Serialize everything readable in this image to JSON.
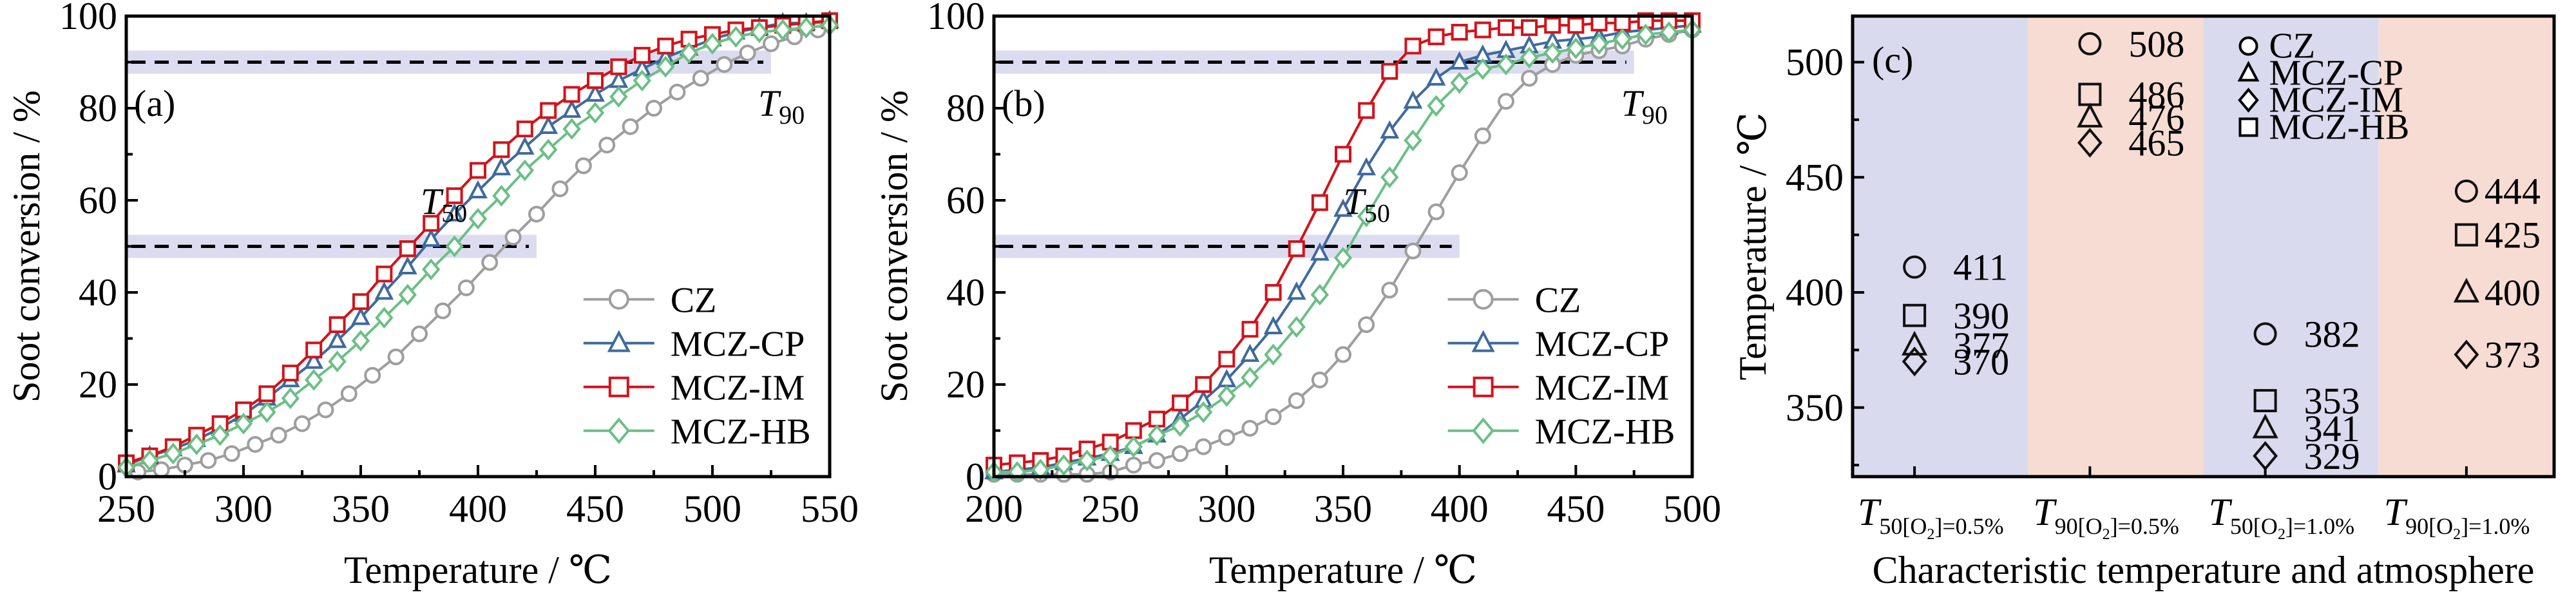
{
  "chart_data": [
    {
      "type": "line",
      "panel_label": "(a)",
      "xlabel": "Temperature / ℃",
      "ylabel": "Soot conversion / %",
      "xlim": [
        250,
        550
      ],
      "ylim": [
        0,
        100
      ],
      "xticks": [
        250,
        300,
        350,
        400,
        450,
        500,
        550
      ],
      "yticks": [
        0,
        20,
        40,
        60,
        80,
        100
      ],
      "legend_position": "bottom-right",
      "reference_lines": [
        {
          "y": 90,
          "label": "T",
          "sub": "90",
          "x_end": 525
        },
        {
          "y": 50,
          "label": "T",
          "sub": "50",
          "x_end": 425
        }
      ],
      "series": [
        {
          "name": "CZ",
          "marker": "circle",
          "color": "#9e9e9e",
          "x": [
            255,
            265,
            275,
            285,
            295,
            305,
            315,
            325,
            335,
            345,
            355,
            365,
            375,
            385,
            395,
            405,
            415,
            425,
            435,
            445,
            455,
            465,
            475,
            485,
            495,
            505,
            515,
            525,
            535,
            545
          ],
          "y": [
            1,
            1.5,
            2.5,
            3.5,
            5,
            7,
            9,
            11.5,
            14.5,
            18,
            22,
            26,
            31,
            36,
            41,
            46.5,
            52,
            57,
            62.5,
            67.5,
            72,
            76,
            80,
            83.5,
            86.5,
            89.5,
            92,
            94,
            95.5,
            97
          ]
        },
        {
          "name": "MCZ-CP",
          "marker": "triangle",
          "color": "#3f6a9e",
          "x": [
            250,
            260,
            270,
            280,
            290,
            300,
            310,
            320,
            330,
            340,
            350,
            360,
            370,
            380,
            390,
            400,
            410,
            420,
            430,
            440,
            450,
            460,
            470,
            480,
            490,
            500,
            510,
            520,
            530,
            540,
            550
          ],
          "y": [
            2.5,
            4.5,
            6,
            8,
            10.5,
            13.5,
            17,
            21,
            25,
            29.5,
            34.5,
            40,
            45.5,
            51.5,
            57,
            62,
            67,
            71.5,
            76,
            79.5,
            83,
            86,
            88.5,
            91,
            93,
            95,
            96.5,
            97.5,
            98.5,
            98.5,
            99
          ]
        },
        {
          "name": "MCZ-IM",
          "marker": "square",
          "color": "#d0141b",
          "x": [
            250,
            260,
            270,
            280,
            290,
            300,
            310,
            320,
            330,
            340,
            350,
            360,
            370,
            380,
            390,
            400,
            410,
            420,
            430,
            440,
            450,
            460,
            470,
            480,
            490,
            500,
            510,
            520,
            530,
            540,
            550
          ],
          "y": [
            3,
            4.5,
            6.5,
            9,
            11.5,
            14.5,
            18,
            22.5,
            27.5,
            33,
            38,
            44,
            49.5,
            55,
            61,
            66.5,
            71,
            75.5,
            79.5,
            83,
            86,
            89,
            91.5,
            93.5,
            95,
            96,
            97,
            97.5,
            98,
            98.5,
            99
          ]
        },
        {
          "name": "MCZ-HB",
          "marker": "diamond",
          "color": "#6bbf85",
          "x": [
            250,
            260,
            270,
            280,
            290,
            300,
            310,
            320,
            330,
            340,
            350,
            360,
            370,
            380,
            390,
            400,
            410,
            420,
            430,
            440,
            450,
            460,
            470,
            480,
            490,
            500,
            510,
            520,
            530,
            540,
            550
          ],
          "y": [
            2,
            3.5,
            5,
            7,
            9,
            11.5,
            14,
            17,
            21,
            25,
            29.5,
            34.5,
            39.5,
            45,
            50,
            56,
            61,
            66.5,
            71,
            75.5,
            79,
            82.5,
            86,
            89,
            92,
            94,
            95.5,
            96.5,
            97,
            97.5,
            98
          ]
        }
      ]
    },
    {
      "type": "line",
      "panel_label": "(b)",
      "xlabel": "Temperature / ℃",
      "ylabel": "Soot conversion / %",
      "xlim": [
        200,
        500
      ],
      "ylim": [
        0,
        100
      ],
      "xticks": [
        200,
        250,
        300,
        350,
        400,
        450,
        500
      ],
      "yticks": [
        0,
        20,
        40,
        60,
        80,
        100
      ],
      "legend_position": "bottom-right",
      "reference_lines": [
        {
          "y": 90,
          "label": "T",
          "sub": "90",
          "x_end": 475
        },
        {
          "y": 50,
          "label": "T",
          "sub": "50",
          "x_end": 400
        }
      ],
      "series": [
        {
          "name": "CZ",
          "marker": "circle",
          "color": "#9e9e9e",
          "x": [
            200,
            210,
            220,
            230,
            240,
            250,
            260,
            270,
            280,
            290,
            300,
            310,
            320,
            330,
            340,
            350,
            360,
            370,
            380,
            390,
            400,
            410,
            420,
            430,
            440,
            450,
            460,
            470,
            480,
            490,
            500
          ],
          "y": [
            0.5,
            0.5,
            0.5,
            0.5,
            0.5,
            1,
            2.5,
            3.5,
            5,
            6.5,
            8.5,
            10.5,
            13,
            16.5,
            21,
            26.5,
            33,
            40.5,
            49,
            57.5,
            66,
            74,
            81.5,
            86.5,
            89.5,
            91.5,
            92.5,
            93.5,
            95,
            96,
            97
          ]
        },
        {
          "name": "MCZ-CP",
          "marker": "triangle",
          "color": "#3f6a9e",
          "x": [
            200,
            210,
            220,
            230,
            240,
            250,
            260,
            270,
            280,
            290,
            300,
            310,
            320,
            330,
            340,
            350,
            360,
            370,
            380,
            390,
            400,
            410,
            420,
            430,
            440,
            450,
            460,
            470,
            480,
            490,
            500
          ],
          "y": [
            1,
            1.5,
            2,
            3,
            4,
            5,
            6.5,
            9,
            12.5,
            16.5,
            21,
            26.5,
            32.5,
            40,
            48.5,
            58,
            67,
            75,
            81.5,
            86.5,
            90,
            91.5,
            92.5,
            93.5,
            94.5,
            95,
            95.5,
            96.5,
            97,
            97.5,
            98
          ]
        },
        {
          "name": "MCZ-IM",
          "marker": "square",
          "color": "#d0141b",
          "x": [
            200,
            210,
            220,
            230,
            240,
            250,
            260,
            270,
            280,
            290,
            300,
            310,
            320,
            330,
            340,
            350,
            360,
            370,
            380,
            390,
            400,
            410,
            420,
            430,
            440,
            450,
            460,
            470,
            480,
            490,
            500
          ],
          "y": [
            2.5,
            3,
            3.5,
            4.5,
            6,
            7.5,
            10,
            12.5,
            16,
            20,
            25.5,
            32,
            40,
            49.5,
            59.5,
            70,
            79.5,
            88,
            93.5,
            95.5,
            96.5,
            97,
            97.5,
            97.5,
            98,
            98,
            98.5,
            98.5,
            99,
            99,
            99
          ]
        },
        {
          "name": "MCZ-HB",
          "marker": "diamond",
          "color": "#6bbf85",
          "x": [
            200,
            210,
            220,
            230,
            240,
            250,
            260,
            270,
            280,
            290,
            300,
            310,
            320,
            330,
            340,
            350,
            360,
            370,
            380,
            390,
            400,
            410,
            420,
            430,
            440,
            450,
            460,
            470,
            480,
            490,
            500
          ],
          "y": [
            1,
            1,
            1.5,
            2.5,
            3.5,
            4.5,
            6.5,
            9,
            11,
            14,
            17.5,
            21.5,
            26.5,
            32.5,
            39.5,
            47.5,
            56.5,
            65,
            73,
            80.5,
            85.5,
            88.5,
            89.5,
            91,
            92,
            93,
            94,
            95,
            96,
            96.5,
            97
          ]
        }
      ]
    },
    {
      "type": "scatter",
      "panel_label": "(c)",
      "xlabel": "Characteristic temperature and atmosphere",
      "ylabel": "Temperature / ℃",
      "ylim": [
        320,
        520
      ],
      "yticks": [
        350,
        400,
        450,
        500
      ],
      "categories": [
        {
          "main": "T",
          "sub": "50[O",
          "sub2": "2",
          "sub3": "]=0.5%"
        },
        {
          "main": "T",
          "sub": "90[O",
          "sub2": "2",
          "sub3": "]=0.5%"
        },
        {
          "main": "T",
          "sub": "50[O",
          "sub2": "2",
          "sub3": "]=1.0%"
        },
        {
          "main": "T",
          "sub": "90[O",
          "sub2": "2",
          "sub3": "]=1.0%"
        }
      ],
      "band_colors": [
        "#d9daee",
        "#f7dcd3",
        "#d9daee",
        "#f7dcd3"
      ],
      "legend_position": "top-right",
      "series": [
        {
          "name": "CZ",
          "marker": "circle",
          "values": [
            411,
            508,
            382,
            444
          ]
        },
        {
          "name": "MCZ-CP",
          "marker": "triangle",
          "values": [
            377,
            476,
            341,
            400
          ]
        },
        {
          "name": "MCZ-IM",
          "marker": "diamond",
          "values": [
            370,
            465,
            329,
            373
          ]
        },
        {
          "name": "MCZ-HB",
          "marker": "square",
          "values": [
            390,
            486,
            353,
            425
          ]
        }
      ]
    }
  ],
  "colors": {
    "band": "#dcdcf0",
    "axis": "#000000"
  }
}
